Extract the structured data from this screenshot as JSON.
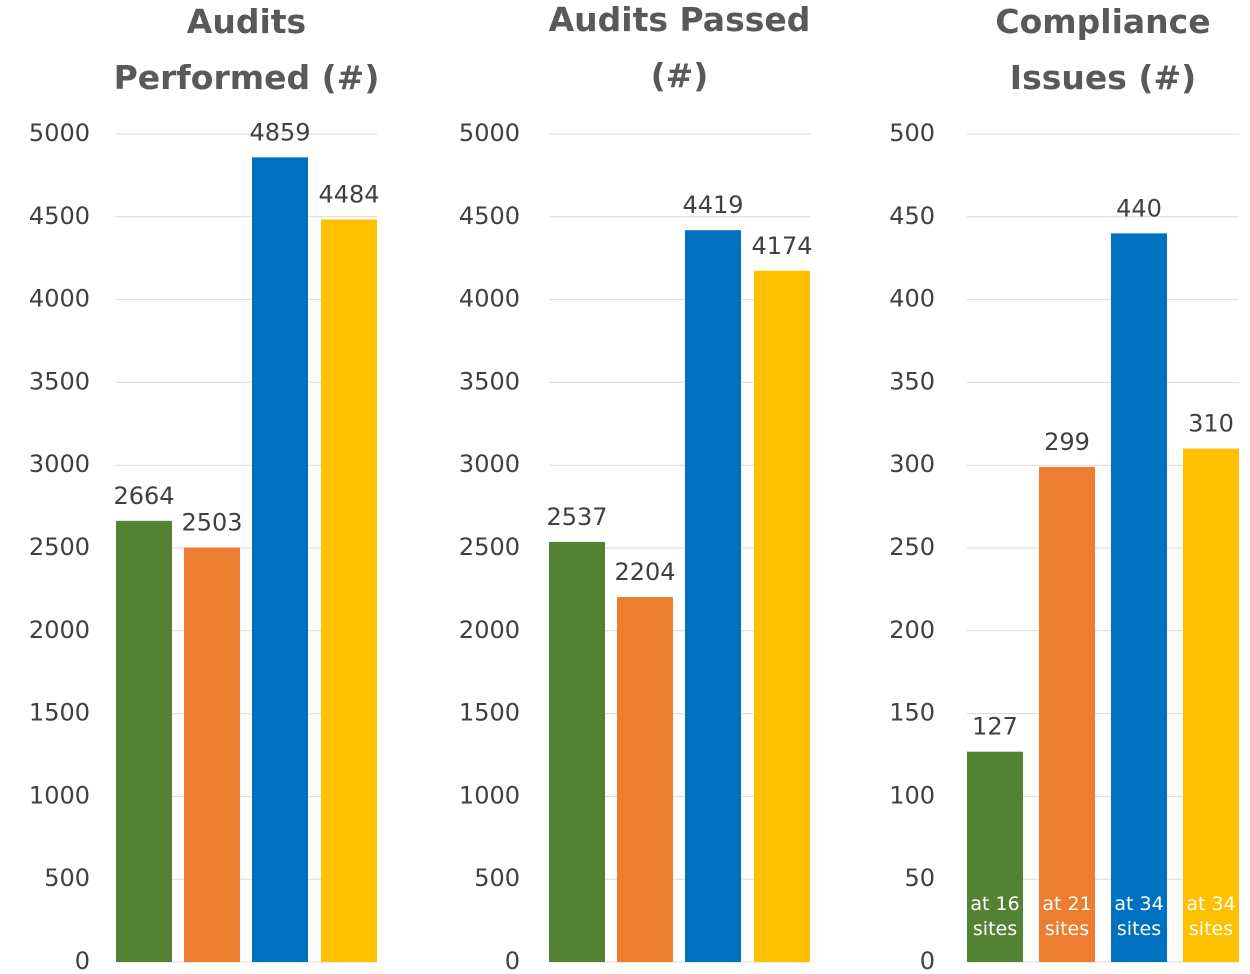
{
  "chart_data": [
    {
      "type": "bar",
      "title": "Audits Performed (#)",
      "categories": [
        null,
        null,
        null,
        null
      ],
      "values": [
        2664,
        2503,
        4859,
        4484
      ],
      "colors": [
        "#548235",
        "#ed7d31",
        "#0070c0",
        "#ffc000"
      ],
      "ylim": [
        0,
        5000
      ],
      "yticks": [
        0,
        500,
        1000,
        1500,
        2000,
        2500,
        3000,
        3500,
        4000,
        4500,
        5000
      ],
      "grid": true
    },
    {
      "type": "bar",
      "title": "Audits Passed (#)",
      "categories": [
        null,
        null,
        null,
        null
      ],
      "values": [
        2537,
        2204,
        4419,
        4174
      ],
      "colors": [
        "#548235",
        "#ed7d31",
        "#0070c0",
        "#ffc000"
      ],
      "ylim": [
        0,
        5000
      ],
      "yticks": [
        0,
        500,
        1000,
        1500,
        2000,
        2500,
        3000,
        3500,
        4000,
        4500,
        5000
      ],
      "grid": true
    },
    {
      "type": "bar",
      "title": "Compliance Issues (#)",
      "categories": [
        "at 16 sites",
        "at 21 sites",
        "at 34 sites",
        "at 34 sites"
      ],
      "values": [
        127,
        299,
        440,
        310
      ],
      "colors": [
        "#548235",
        "#ed7d31",
        "#0070c0",
        "#ffc000"
      ],
      "ylim": [
        0,
        500
      ],
      "yticks": [
        0,
        50,
        100,
        150,
        200,
        250,
        300,
        350,
        400,
        450,
        500
      ],
      "grid": true
    }
  ]
}
